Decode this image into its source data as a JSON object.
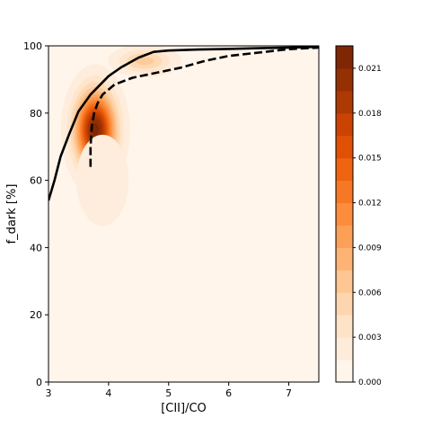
{
  "chart_data": {
    "type": "contour",
    "title": "",
    "xlabel": "[CII]/CO",
    "ylabel": "f_dark [%]",
    "xlim": [
      3,
      7.5
    ],
    "ylim": [
      0,
      100
    ],
    "xticks": [
      3,
      4,
      5,
      6,
      7
    ],
    "yticks": [
      0,
      20,
      40,
      60,
      80,
      100
    ],
    "colormap": "Oranges",
    "density_peaks": [
      {
        "x": 3.78,
        "y": 75,
        "sx": 0.22,
        "sy": 7.5,
        "amp": 0.0225
      },
      {
        "x": 4.6,
        "y": 95.5,
        "sx": 0.3,
        "sy": 2.4,
        "amp": 0.006
      },
      {
        "x": 3.9,
        "y": 60,
        "sx": 0.45,
        "sy": 14,
        "amp": 0.0012
      }
    ],
    "colorbar": {
      "ticks": [
        "0.000",
        "0.003",
        "0.006",
        "0.009",
        "0.012",
        "0.015",
        "0.018",
        "0.021"
      ],
      "tick_values": [
        0,
        0.003,
        0.006,
        0.009,
        0.012,
        0.015,
        0.018,
        0.021
      ],
      "range": [
        0,
        0.0225
      ],
      "levels": 15
    },
    "series": [
      {
        "style": "solid",
        "color": "#000000",
        "x": [
          3.0,
          3.1,
          3.2,
          3.35,
          3.5,
          3.7,
          4.0,
          4.2,
          4.5,
          4.75,
          5.0,
          5.5,
          6.0,
          6.5,
          7.0,
          7.5
        ],
        "y": [
          54,
          60,
          67,
          74,
          80.5,
          85.5,
          91,
          93.5,
          96.5,
          98.2,
          98.6,
          98.9,
          99.1,
          99.3,
          99.5,
          99.7
        ]
      },
      {
        "style": "dashed",
        "color": "#000000",
        "x": [
          3.7,
          3.7,
          3.72,
          3.76,
          3.82,
          3.9,
          4.1,
          4.4,
          4.8,
          5.2,
          5.6,
          6.0,
          6.5,
          7.0,
          7.5
        ],
        "y": [
          64,
          70,
          76,
          80,
          83,
          85.5,
          88.5,
          90.5,
          92,
          93.5,
          95.5,
          97,
          98,
          99,
          99.5
        ]
      }
    ]
  }
}
